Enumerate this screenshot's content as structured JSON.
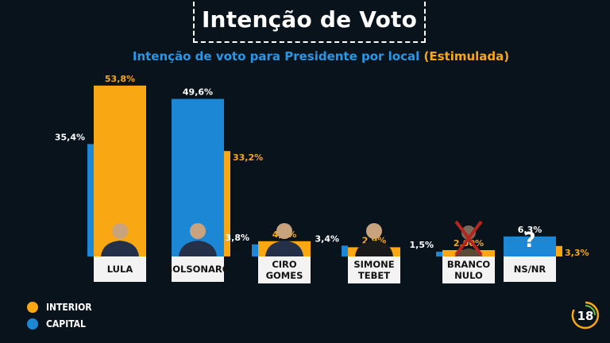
{
  "header": {
    "title": "Intenção de Voto",
    "subtitle_main": "Intenção de voto para Presidente por local",
    "subtitle_highlight": "(Estimulada)"
  },
  "legend": [
    {
      "label": "INTERIOR",
      "color": "#f9a814"
    },
    {
      "label": "CAPITAL",
      "color": "#1c87d4"
    }
  ],
  "logo": {
    "text": "18"
  },
  "colors": {
    "interior": "#f9a814",
    "capital": "#1c87d4",
    "background": "#08131c"
  },
  "chart_data": {
    "type": "bar",
    "categories": [
      "LULA",
      "BOLSONARO",
      "CIRO GOMES",
      "SIMONE TEBET",
      "BRANCO NULO",
      "NS/NR"
    ],
    "series": [
      {
        "name": "INTERIOR",
        "values": [
          53.8,
          33.2,
          4.8,
          2.9,
          2.0,
          3.3
        ],
        "labels": [
          "53,8%",
          "33,2%",
          "4,8%",
          "2,9%",
          "2,00%",
          "3,3%"
        ]
      },
      {
        "name": "CAPITAL",
        "values": [
          35.4,
          49.6,
          3.8,
          3.4,
          1.5,
          6.3
        ],
        "labels": [
          "35,4%",
          "49,6%",
          "3,8%",
          "3,4%",
          "1,5%",
          "6,3%"
        ]
      }
    ],
    "ylim": [
      0,
      55
    ],
    "grid": false,
    "legend_position": "bottom-left"
  }
}
